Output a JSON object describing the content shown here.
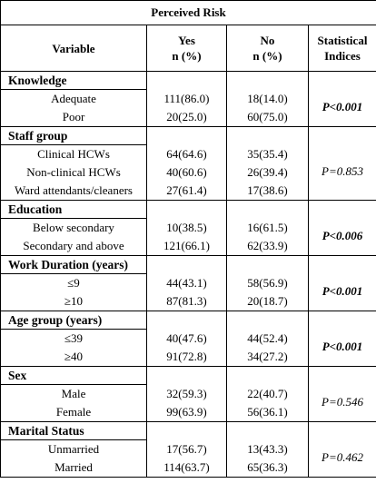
{
  "table": {
    "caption": "Perceived Risk",
    "headers": {
      "variable": "Variable",
      "yes_line1": "Yes",
      "yes_line2": "n (%)",
      "no_line1": "No",
      "no_line2": "n (%)",
      "stat_line1": "Statistical",
      "stat_line2": "Indices"
    },
    "sections": [
      {
        "title": "Knowledge",
        "stat": "P<0.001",
        "stat_bold": true,
        "rows": [
          {
            "label": "Adequate",
            "yes": "111(86.0)",
            "no": "18(14.0)"
          },
          {
            "label": "Poor",
            "yes": "20(25.0)",
            "no": "60(75.0)"
          }
        ]
      },
      {
        "title": "Staff group",
        "stat": "P=0.853",
        "stat_bold": false,
        "rows": [
          {
            "label": "Clinical HCWs",
            "yes": "64(64.6)",
            "no": "35(35.4)"
          },
          {
            "label": "Non-clinical HCWs",
            "yes": "40(60.6)",
            "no": "26(39.4)"
          },
          {
            "label": "Ward attendants/cleaners",
            "yes": "27(61.4)",
            "no": "17(38.6)"
          }
        ]
      },
      {
        "title": "Education",
        "stat": "P<0.006",
        "stat_bold": true,
        "rows": [
          {
            "label": "Below secondary",
            "yes": "10(38.5)",
            "no": "16(61.5)"
          },
          {
            "label": "Secondary and above",
            "yes": "121(66.1)",
            "no": "62(33.9)"
          }
        ]
      },
      {
        "title": "Work Duration (years)",
        "stat": "P<0.001",
        "stat_bold": true,
        "rows": [
          {
            "label": "≤9",
            "yes": "44(43.1)",
            "no": "58(56.9)"
          },
          {
            "label": "≥10",
            "yes": "87(81.3)",
            "no": "20(18.7)"
          }
        ]
      },
      {
        "title": "Age group (years)",
        "stat": "P<0.001",
        "stat_bold": true,
        "rows": [
          {
            "label": "≤39",
            "yes": "40(47.6)",
            "no": "44(52.4)"
          },
          {
            "label": "≥40",
            "yes": "91(72.8)",
            "no": "34(27.2)"
          }
        ]
      },
      {
        "title": "Sex",
        "stat": "P=0.546",
        "stat_bold": false,
        "rows": [
          {
            "label": "Male",
            "yes": "32(59.3)",
            "no": "22(40.7)"
          },
          {
            "label": "Female",
            "yes": "99(63.9)",
            "no": "56(36.1)"
          }
        ]
      },
      {
        "title": "Marital Status",
        "stat": "P=0.462",
        "stat_bold": false,
        "rows": [
          {
            "label": "Unmarried",
            "yes": "17(56.7)",
            "no": "13(43.3)"
          },
          {
            "label": "Married",
            "yes": "114(63.7)",
            "no": "65(36.3)"
          }
        ]
      }
    ]
  }
}
